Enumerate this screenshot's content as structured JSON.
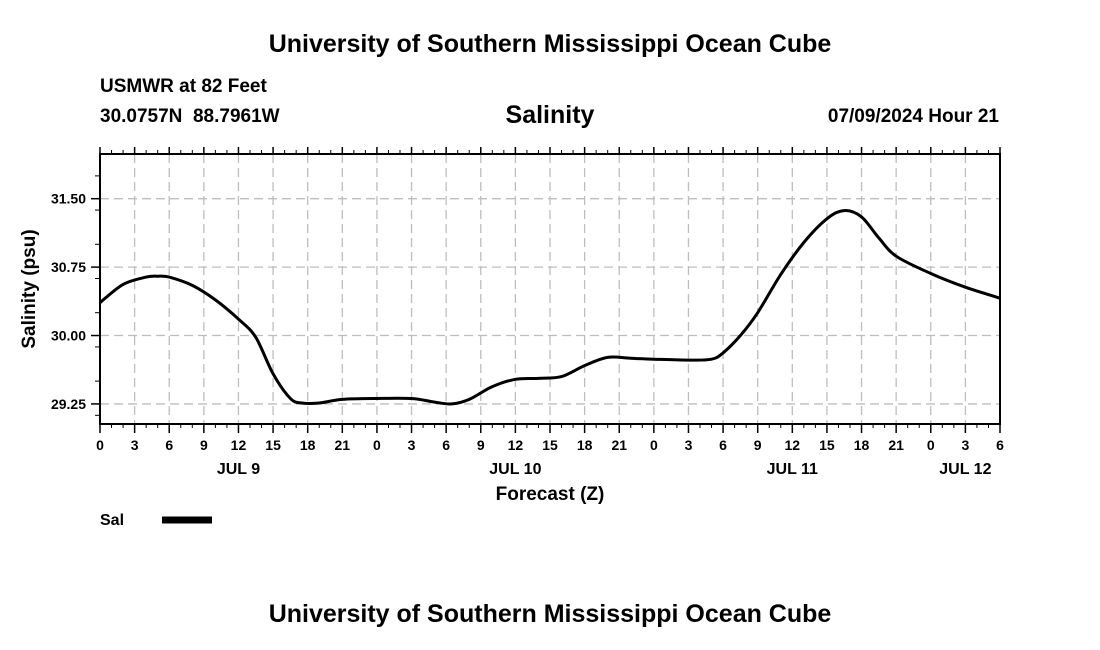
{
  "header": {
    "title_top": "University of Southern Mississippi Ocean Cube",
    "station": "USMWR at 82 Feet",
    "coords": "30.0757N  88.7961W",
    "param": "Salinity",
    "datetime": "07/09/2024 Hour 21",
    "title_bottom": "University of Southern Mississippi Ocean Cube"
  },
  "legend": {
    "label": "Sal",
    "color": "#000000"
  },
  "colors": {
    "grid": "#bdbdbd",
    "line": "#000000",
    "frame": "#000000"
  },
  "chart_data": {
    "type": "line",
    "title": "Salinity",
    "xlabel": "Forecast (Z)",
    "ylabel": "Salinity (psu)",
    "x_unit": "hours from 00Z JUL 9",
    "xlim": [
      0,
      78
    ],
    "ylim": [
      29.03,
      31.99
    ],
    "yticks": [
      29.25,
      30.0,
      30.75,
      31.5
    ],
    "ytick_labels": [
      "29.25",
      "30.00",
      "30.75",
      "31.50"
    ],
    "xtick_labels": [
      "0",
      "3",
      "6",
      "9",
      "12",
      "15",
      "18",
      "21",
      "0",
      "3",
      "6",
      "9",
      "12",
      "15",
      "18",
      "21",
      "0",
      "3",
      "6",
      "9",
      "12",
      "15",
      "18",
      "21",
      "0",
      "3",
      "6"
    ],
    "day_labels": [
      {
        "hour": 12,
        "label": "JUL 9"
      },
      {
        "hour": 36,
        "label": "JUL 10"
      },
      {
        "hour": 60,
        "label": "JUL 11"
      },
      {
        "hour": 75,
        "label": "JUL 12"
      }
    ],
    "grid": true,
    "legend_position": "bottom-left",
    "series": [
      {
        "name": "Sal",
        "x": [
          0,
          2,
          4,
          5,
          6,
          8,
          10,
          12,
          13.5,
          15,
          16.5,
          17.5,
          19,
          21,
          24,
          27,
          29,
          30.5,
          32,
          34,
          36,
          38,
          40,
          42,
          44,
          46,
          48,
          51,
          53,
          54,
          55.5,
          57,
          59,
          61,
          63,
          64.5,
          66,
          67.5,
          69,
          72,
          75,
          78
        ],
        "y": [
          30.36,
          30.56,
          30.64,
          30.65,
          30.64,
          30.55,
          30.39,
          30.18,
          29.98,
          29.58,
          29.31,
          29.26,
          29.26,
          29.3,
          29.31,
          29.31,
          29.27,
          29.25,
          29.3,
          29.44,
          29.52,
          29.53,
          29.55,
          29.67,
          29.76,
          29.75,
          29.74,
          29.73,
          29.74,
          29.81,
          30.0,
          30.25,
          30.67,
          31.02,
          31.28,
          31.37,
          31.3,
          31.07,
          30.87,
          30.68,
          30.53,
          30.41
        ]
      }
    ]
  }
}
